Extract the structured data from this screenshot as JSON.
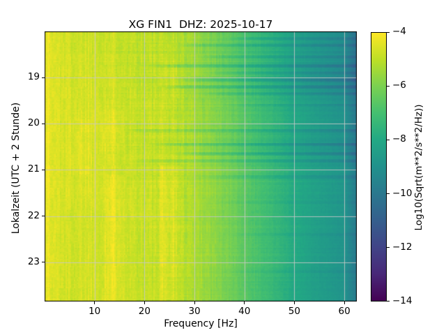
{
  "chart_data": {
    "type": "heatmap",
    "subtype": "spectrogram",
    "title": "XG FIN1  DHZ: 2025-10-17",
    "xlabel": "Frequency [Hz]",
    "ylabel": "Lokalzeit (UTC + 2 Stunde)",
    "xlim": [
      0,
      62.5
    ],
    "ylim_hours": [
      18.0,
      23.85
    ],
    "x_ticks": [
      10,
      20,
      30,
      40,
      50,
      60
    ],
    "x_tick_labels": [
      "10",
      "20",
      "30",
      "40",
      "50",
      "60"
    ],
    "y_ticks": [
      19,
      20,
      21,
      22,
      23
    ],
    "y_tick_labels": [
      "19",
      "20",
      "21",
      "22",
      "23"
    ],
    "grid": true,
    "grid_color": "rgba(200,200,200,0.85)",
    "colorbar": {
      "label": "Log10(Sqrt(m**2/s**2/Hz))",
      "ticks": [
        -4,
        -6,
        -8,
        -10,
        -12,
        -14
      ],
      "tick_labels": [
        "−4",
        "−6",
        "−8",
        "−10",
        "−12",
        "−14"
      ],
      "vmin": -14,
      "vmax": -4,
      "colormap": "viridis",
      "colormap_stops": [
        "#440154",
        "#482878",
        "#414487",
        "#355f8d",
        "#2a788e",
        "#21918c",
        "#22a884",
        "#44bf70",
        "#7ad151",
        "#bddf26",
        "#fde725"
      ]
    },
    "levels_grid": {
      "comment": "Log10(Sqrt(m**2/s**2/Hz)) levels read from the image on a coarse freq x time grid",
      "freq_bins": [
        0,
        5,
        10,
        15,
        20,
        25,
        30,
        35,
        40,
        45,
        50,
        55,
        60,
        62.5
      ],
      "time_bins": [
        18.0,
        18.5,
        19.0,
        19.5,
        20.0,
        20.5,
        21.0,
        21.5,
        22.0,
        22.5,
        23.0,
        23.5
      ],
      "values": [
        [
          -4.4,
          -4.7,
          -4.7,
          -4.8,
          -5.0,
          -5.0,
          -5.5,
          -6.2,
          -6.9,
          -7.6,
          -8.3,
          -8.8,
          -9.2,
          -10.3
        ],
        [
          -4.4,
          -4.7,
          -4.7,
          -4.8,
          -5.0,
          -5.0,
          -5.5,
          -6.2,
          -6.9,
          -7.6,
          -8.3,
          -8.8,
          -9.2,
          -10.3
        ],
        [
          -4.4,
          -4.6,
          -4.6,
          -4.7,
          -5.0,
          -4.9,
          -5.4,
          -6.1,
          -6.8,
          -7.6,
          -8.3,
          -8.9,
          -9.3,
          -10.4
        ],
        [
          -4.4,
          -4.6,
          -4.6,
          -4.7,
          -4.9,
          -4.9,
          -5.4,
          -6.0,
          -6.7,
          -7.4,
          -8.1,
          -8.6,
          -9.0,
          -10.1
        ],
        [
          -4.4,
          -4.6,
          -4.5,
          -4.7,
          -4.9,
          -4.8,
          -5.3,
          -5.9,
          -6.6,
          -7.3,
          -8.0,
          -8.5,
          -8.9,
          -10.0
        ],
        [
          -4.4,
          -4.6,
          -4.5,
          -4.7,
          -4.9,
          -4.9,
          -5.3,
          -6.0,
          -6.7,
          -7.4,
          -8.1,
          -8.6,
          -9.0,
          -10.1
        ],
        [
          -4.4,
          -4.6,
          -4.5,
          -4.6,
          -4.9,
          -4.8,
          -5.2,
          -5.8,
          -6.5,
          -7.2,
          -7.9,
          -8.4,
          -8.8,
          -9.9
        ],
        [
          -4.4,
          -4.6,
          -4.5,
          -4.6,
          -4.8,
          -4.8,
          -5.2,
          -5.8,
          -6.5,
          -7.2,
          -7.9,
          -8.4,
          -8.8,
          -9.9
        ],
        [
          -4.4,
          -4.7,
          -4.6,
          -4.6,
          -4.8,
          -4.8,
          -5.2,
          -5.8,
          -6.5,
          -7.2,
          -7.9,
          -8.4,
          -8.8,
          -9.9
        ],
        [
          -4.4,
          -4.7,
          -4.6,
          -4.6,
          -4.9,
          -4.8,
          -5.2,
          -5.8,
          -6.5,
          -7.2,
          -7.9,
          -8.5,
          -8.9,
          -10.0
        ],
        [
          -4.4,
          -4.7,
          -4.6,
          -4.6,
          -4.9,
          -4.8,
          -5.2,
          -5.8,
          -6.5,
          -7.2,
          -7.9,
          -8.5,
          -8.9,
          -10.0
        ],
        [
          -4.4,
          -4.7,
          -4.6,
          -4.6,
          -4.9,
          -4.9,
          -5.3,
          -5.9,
          -6.6,
          -7.3,
          -8.0,
          -8.5,
          -8.9,
          -10.0
        ]
      ]
    },
    "quiet_streaks": [
      {
        "t": 18.15,
        "fmin": 35,
        "db": -0.6
      },
      {
        "t": 18.3,
        "fmin": 25,
        "db": -0.7
      },
      {
        "t": 18.55,
        "fmin": 30,
        "db": -0.6
      },
      {
        "t": 18.75,
        "fmin": 20,
        "db": -0.8
      },
      {
        "t": 18.9,
        "fmin": 32,
        "db": -0.5
      },
      {
        "t": 19.05,
        "fmin": 26,
        "db": -0.8
      },
      {
        "t": 19.2,
        "fmin": 22,
        "db": -0.9
      },
      {
        "t": 19.35,
        "fmin": 30,
        "db": -0.6
      },
      {
        "t": 19.6,
        "fmin": 35,
        "db": -0.4
      },
      {
        "t": 20.15,
        "fmin": 15,
        "db": -0.7
      },
      {
        "t": 20.45,
        "fmin": 20,
        "db": -0.9
      },
      {
        "t": 20.65,
        "fmin": 25,
        "db": -0.8
      },
      {
        "t": 20.8,
        "fmin": 17,
        "db": -0.6
      },
      {
        "t": 21.15,
        "fmin": 30,
        "db": -0.4
      },
      {
        "t": 21.7,
        "fmin": 32,
        "db": -0.4
      },
      {
        "t": 22.4,
        "fmin": 35,
        "db": -0.35
      },
      {
        "t": 23.2,
        "fmin": 35,
        "db": -0.3
      }
    ],
    "bright_bands": [
      {
        "fmin": 12,
        "fmax": 16,
        "tmin": 21.1,
        "tmax": 23.85,
        "db": 0.35
      },
      {
        "fmin": 23,
        "fmax": 27,
        "tmin": 20.9,
        "tmax": 23.85,
        "db": 0.4
      },
      {
        "fmin": 11,
        "fmax": 16,
        "tmin": 19.7,
        "tmax": 20.6,
        "db": 0.3
      },
      {
        "fmin": 5,
        "fmax": 9,
        "tmin": 19.9,
        "tmax": 21.1,
        "db": 0.25
      },
      {
        "fmin": 24,
        "fmax": 27,
        "tmin": 18.6,
        "tmax": 19.5,
        "db": 0.3
      },
      {
        "fmin": 0,
        "fmax": 1,
        "tmin": 18.0,
        "tmax": 23.85,
        "db": 0.3
      }
    ]
  }
}
